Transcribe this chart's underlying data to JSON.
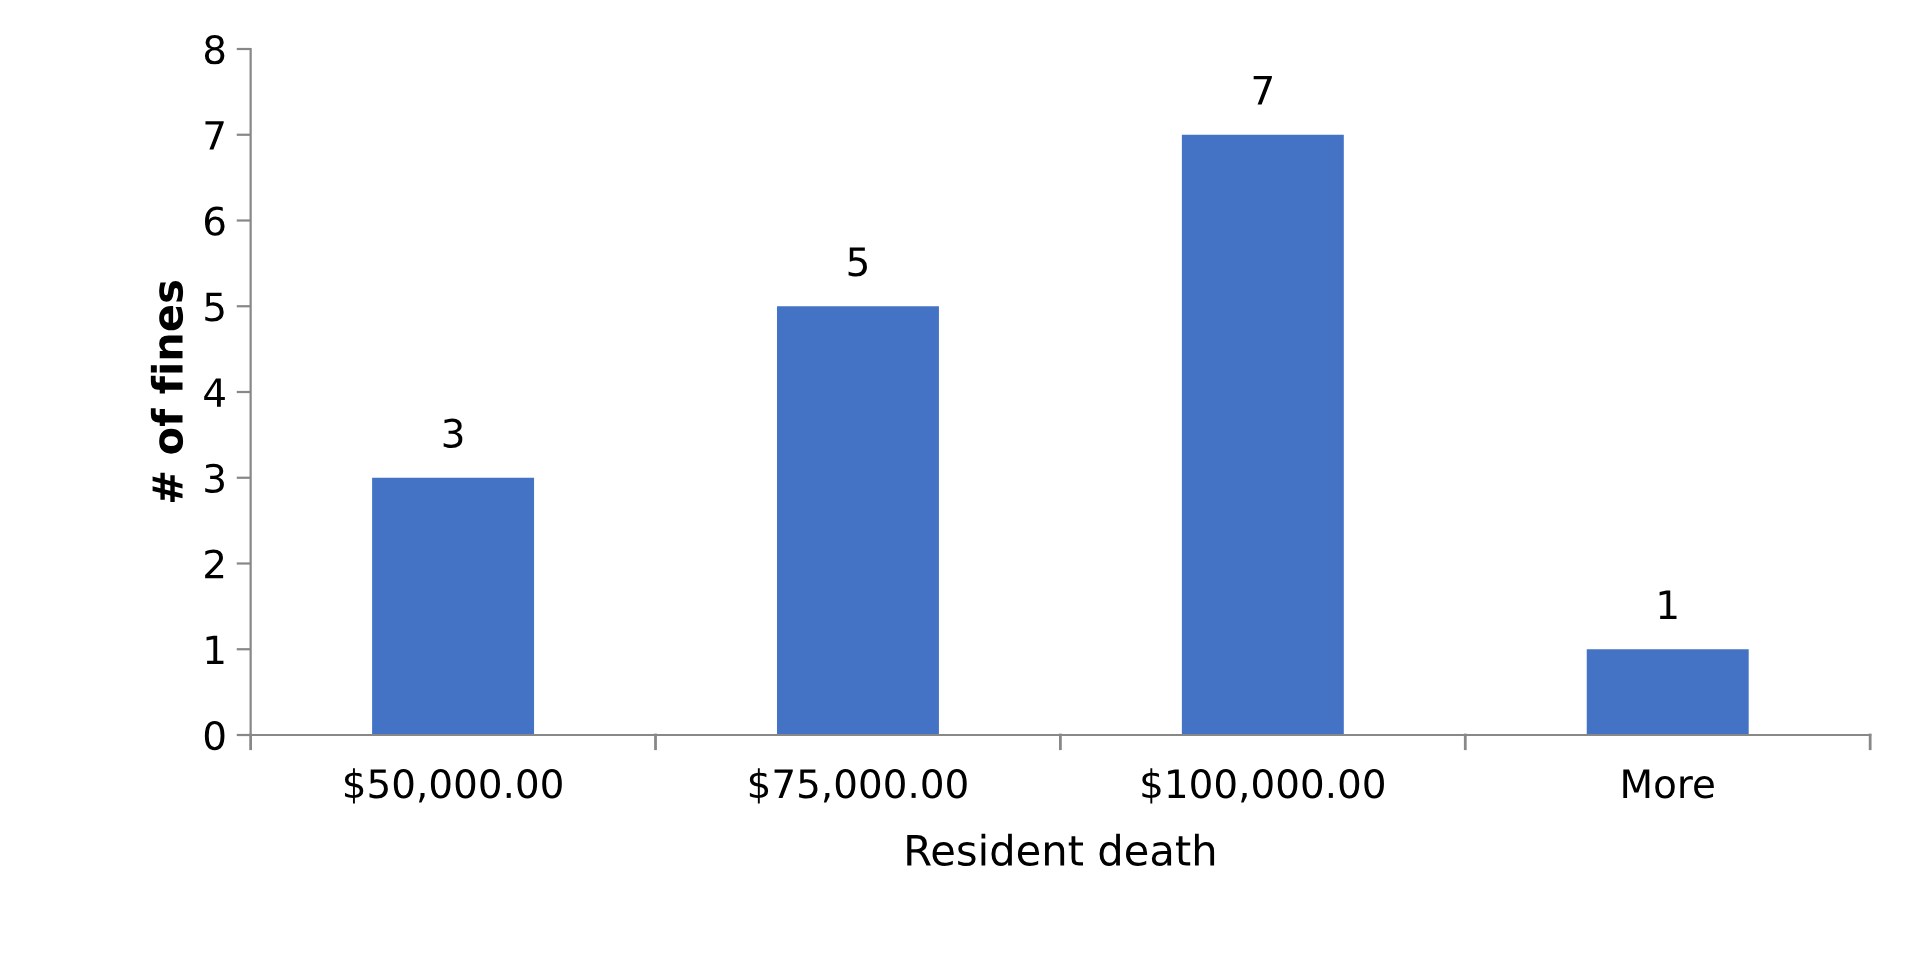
{
  "chart_data": {
    "type": "bar",
    "categories": [
      "$50,000.00",
      "$75,000.00",
      "$100,000.00",
      "More"
    ],
    "values": [
      3,
      5,
      7,
      1
    ],
    "color": "#4472c4",
    "xlabel": "Resident death",
    "ylabel": "# of fines",
    "ylim": [
      0,
      8
    ],
    "yticks": [
      0,
      1,
      2,
      3,
      4,
      5,
      6,
      7,
      8
    ],
    "data_labels": true,
    "grid": false,
    "legend": false
  }
}
